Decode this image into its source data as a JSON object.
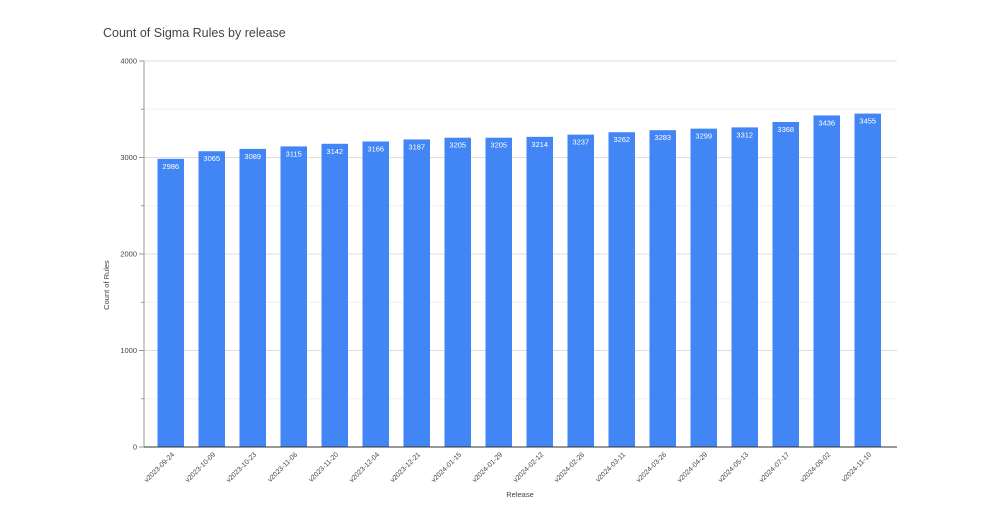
{
  "chart_data": {
    "type": "bar",
    "title": "Count of Sigma Rules by release",
    "xlabel": "Release",
    "ylabel": "Count of Rules",
    "ylim": [
      0,
      4000
    ],
    "yticks": [
      0,
      1000,
      2000,
      3000,
      4000
    ],
    "grid": true,
    "legend": "none",
    "bar_color": "#4285f4",
    "categories": [
      "v2023-09-24",
      "v2023-10-09",
      "v2023-10-23",
      "v2023-11-06",
      "v2023-11-20",
      "v2023-12-04",
      "v2023-12-21",
      "v2024-01-15",
      "v2024-01-29",
      "v2024-02-12",
      "v2024-02-26",
      "v2024-03-11",
      "v2024-03-26",
      "v2024-04-29",
      "v2024-05-13",
      "v2024-07-17",
      "v2024-09-02",
      "v2024-11-10"
    ],
    "values": [
      2986,
      3065,
      3089,
      3115,
      3142,
      3166,
      3187,
      3205,
      3205,
      3214,
      3237,
      3262,
      3283,
      3299,
      3312,
      3368,
      3436,
      3455
    ]
  }
}
